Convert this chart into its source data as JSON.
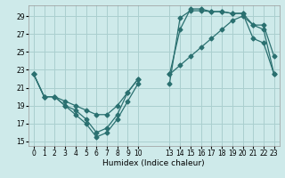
{
  "xlabel": "Humidex (Indice chaleur)",
  "bg_color": "#ceeaea",
  "grid_color": "#aacfcf",
  "line_color": "#2a7070",
  "marker_size": 2.5,
  "xlim": [
    -0.5,
    23.5
  ],
  "ylim": [
    14.5,
    30.2
  ],
  "yticks": [
    15,
    17,
    19,
    21,
    23,
    25,
    27,
    29
  ],
  "xtick_positions": [
    0,
    1,
    2,
    3,
    4,
    5,
    6,
    7,
    8,
    9,
    10,
    13,
    14,
    15,
    16,
    17,
    18,
    19,
    20,
    21,
    22,
    23
  ],
  "xtick_labels": [
    "0",
    "1",
    "2",
    "3",
    "4",
    "5",
    "6",
    "7",
    "8",
    "9",
    "10",
    "13",
    "14",
    "15",
    "16",
    "17",
    "18",
    "19",
    "20",
    "21",
    "22",
    "23"
  ],
  "line1_x": [
    0,
    1,
    2,
    3,
    4,
    5,
    6,
    7,
    8,
    9,
    10,
    13,
    14,
    15,
    16,
    17,
    18,
    19,
    20,
    21,
    22,
    23
  ],
  "line1_y": [
    22.5,
    20.0,
    20.0,
    19.0,
    18.0,
    17.0,
    15.5,
    16.0,
    17.5,
    19.5,
    21.5,
    21.5,
    28.8,
    29.6,
    29.6,
    29.5,
    29.5,
    29.3,
    29.3,
    26.5,
    26.0,
    22.5
  ],
  "line2_x": [
    0,
    1,
    2,
    3,
    4,
    5,
    6,
    7,
    8,
    9,
    10,
    13,
    14,
    15,
    16,
    17,
    18,
    19,
    20,
    21,
    22,
    23
  ],
  "line2_y": [
    22.5,
    20.0,
    20.0,
    19.0,
    18.5,
    17.5,
    16.0,
    16.5,
    18.0,
    20.5,
    22.0,
    22.5,
    27.5,
    29.8,
    29.8,
    29.5,
    29.5,
    29.3,
    29.3,
    28.0,
    28.0,
    24.5
  ],
  "line3_x": [
    0,
    1,
    2,
    3,
    4,
    5,
    6,
    7,
    8,
    9,
    10,
    13,
    14,
    15,
    16,
    17,
    18,
    19,
    20,
    21,
    22,
    23
  ],
  "line3_y": [
    22.5,
    20.0,
    20.0,
    19.5,
    19.0,
    18.5,
    18.0,
    18.0,
    19.0,
    20.5,
    22.0,
    22.5,
    23.5,
    24.5,
    25.5,
    26.5,
    27.5,
    28.5,
    29.0,
    28.0,
    27.5,
    22.5
  ]
}
